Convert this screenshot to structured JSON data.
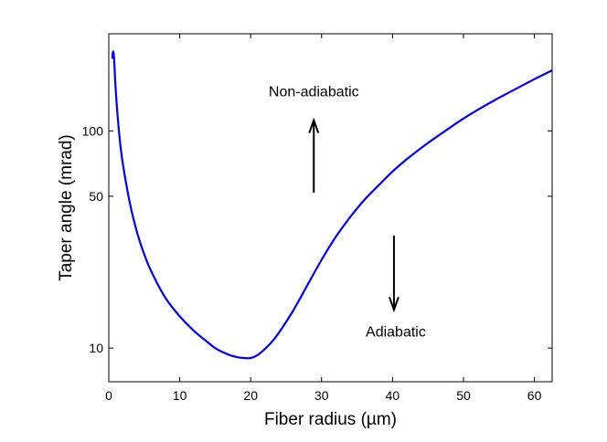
{
  "chart_data": {
    "type": "line",
    "title": "",
    "xlabel": "Fiber radius (µm)",
    "ylabel": "Taper angle (mrad)",
    "x_scale": "linear",
    "y_scale": "log",
    "xlim": [
      0,
      62.5
    ],
    "ylim": [
      7,
      280
    ],
    "x_ticks": [
      0,
      10,
      20,
      30,
      40,
      50,
      60
    ],
    "y_ticks": [
      10,
      50,
      100
    ],
    "grid": false,
    "legend": "none",
    "series": [
      {
        "color": "#0000ff",
        "x": [
          0.5,
          0.6,
          0.75,
          1.0,
          1.5,
          2,
          3,
          4,
          5,
          6,
          8,
          10,
          12,
          14,
          15,
          16,
          17,
          18,
          19,
          20,
          21,
          22,
          23,
          24,
          25,
          26,
          27,
          28,
          30,
          32,
          34,
          36,
          38,
          40,
          42,
          45,
          48,
          50,
          52,
          55,
          58,
          60,
          62.5
        ],
        "y": [
          215,
          232,
          215,
          150,
          95,
          70,
          46,
          34,
          27,
          22.5,
          17,
          14,
          12,
          10.6,
          10.0,
          9.6,
          9.3,
          9.1,
          9.0,
          9.0,
          9.3,
          9.9,
          10.7,
          11.8,
          13.2,
          14.9,
          17.0,
          19.5,
          25.5,
          32.5,
          40,
          48,
          56,
          65,
          74,
          88,
          103,
          114,
          125,
          142,
          160,
          173,
          190
        ]
      }
    ],
    "annotations": [
      {
        "text": "Non-adiabatic",
        "arrow": "up",
        "x": 28.9,
        "y_from": 52,
        "y_to": 112
      },
      {
        "text": "Adiabatic",
        "arrow": "down",
        "x": 40.2,
        "y_from": 33,
        "y_to": 15
      }
    ]
  }
}
